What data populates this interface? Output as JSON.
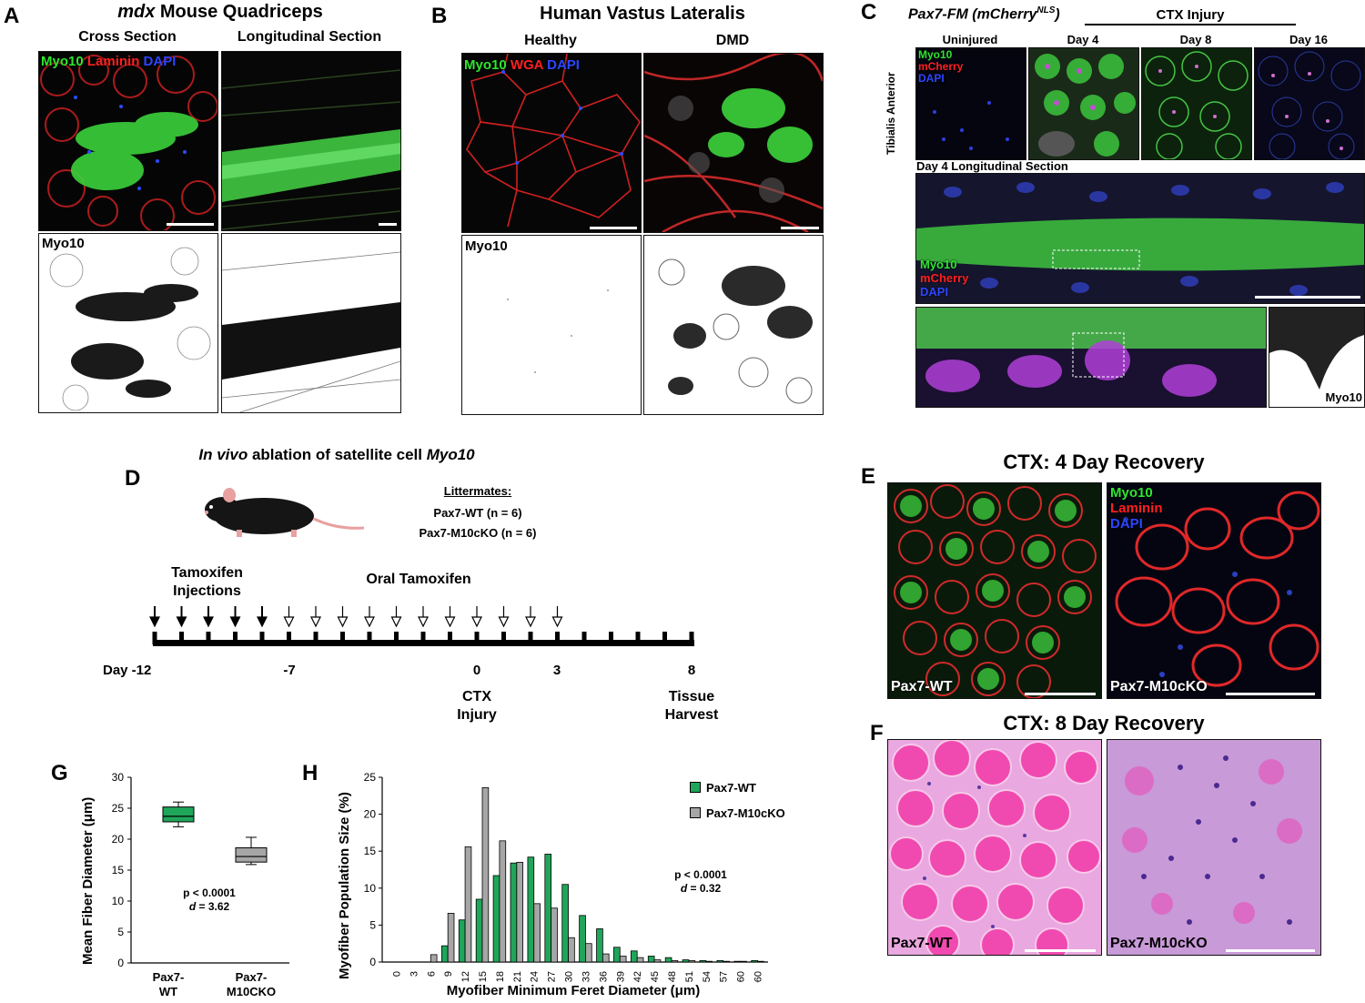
{
  "panelA": {
    "letter": "A",
    "title_italic": "mdx",
    "title_rest": " Mouse Quadriceps",
    "col1": "Cross Section",
    "col2": "Longitudinal Section",
    "stain": [
      "Myo10",
      "Laminin",
      "DAPI"
    ],
    "bw_label": "Myo10"
  },
  "panelB": {
    "letter": "B",
    "title": "Human Vastus Lateralis",
    "col1": "Healthy",
    "col2": "DMD",
    "stain": [
      "Myo10",
      "WGA",
      "DAPI"
    ],
    "bw_label": "Myo10"
  },
  "panelC": {
    "letter": "C",
    "title_italic": "Pax7-FM (mCherry",
    "title_sup": "NLS",
    "title_close": ")",
    "injury": "CTX Injury",
    "row_label": "Tibialis Anterior",
    "cols": [
      "Uninjured",
      "Day 4",
      "Day 8",
      "Day 16"
    ],
    "stain": [
      "Myo10",
      "mCherry",
      "DAPI"
    ],
    "long_title": "Day 4 Longitudinal Section",
    "inset_label": "Myo10"
  },
  "panelD": {
    "letter": "D",
    "title_italic1": "In vivo",
    "title_mid": " ablation of satellite cell ",
    "title_italic2": "Myo10",
    "littermates": "Littermates:",
    "group1": "Pax7-WT (n = 6)",
    "group2": "Pax7-M10cKO (n = 6)",
    "inj_label1": "Tamoxifen",
    "inj_label2": "Injections",
    "oral_label": "Oral Tamoxifen",
    "day_start": "Day -12",
    "day_m7": "-7",
    "day_0": "0",
    "day_3": "3",
    "day_8": "8",
    "ctx1": "CTX",
    "ctx2": "Injury",
    "harvest1": "Tissue",
    "harvest2": "Harvest"
  },
  "panelE": {
    "letter": "E",
    "title": "CTX: 4 Day Recovery",
    "stain": [
      "Myo10",
      "Laminin",
      "DAPI"
    ],
    "left_label": "Pax7-WT",
    "right_label": "Pax7-M10cKO"
  },
  "panelF": {
    "letter": "F",
    "title": "CTX: 8 Day Recovery",
    "left_label": "Pax7-WT",
    "right_label": "Pax7-M10cKO"
  },
  "panelG": {
    "letter": "G",
    "ylabel": "Mean Fiber Diameter (μm)",
    "stat1": "p < 0.0001",
    "stat2_italic": "d",
    "stat2_rest": " = 3.62",
    "x1a": "Pax7-",
    "x1b": "WT",
    "x2a": "Pax7-",
    "x2b": "M10CKO"
  },
  "panelH": {
    "letter": "H",
    "ylabel": "Myofiber Population Size (%)",
    "xlabel": "Myofiber Minimum Feret Diameter (μm)",
    "stat1": "p < 0.0001",
    "stat2_italic": "d",
    "stat2_rest": " = 0.32",
    "legend": [
      "Pax7-WT",
      "Pax7-M10cKO"
    ]
  },
  "chart_data": [
    {
      "type": "box",
      "panel": "G",
      "ylabel": "Mean Fiber Diameter (μm)",
      "ylim": [
        0,
        30
      ],
      "yticks": [
        0,
        5,
        10,
        15,
        20,
        25,
        30
      ],
      "categories": [
        "Pax7-WT",
        "Pax7-M10CKO"
      ],
      "boxes": [
        {
          "name": "Pax7-WT",
          "min": 22.0,
          "q1": 22.8,
          "median": 23.7,
          "q3": 25.2,
          "max": 26.0,
          "color": "#1fa65a"
        },
        {
          "name": "Pax7-M10CKO",
          "min": 15.9,
          "q1": 16.3,
          "median": 17.2,
          "q3": 18.6,
          "max": 20.3,
          "color": "#a6a6a6"
        }
      ]
    },
    {
      "type": "bar",
      "panel": "H",
      "ylabel": "Myofiber Population Size (%)",
      "xlabel": "Myofiber Minimum Feret Diameter (μm)",
      "ylim": [
        0,
        25
      ],
      "yticks": [
        0,
        5,
        10,
        15,
        20,
        25
      ],
      "categories": [
        "0",
        "3",
        "6",
        "9",
        "12",
        "15",
        "18",
        "21",
        "24",
        "27",
        "30",
        "33",
        "36",
        "39",
        "42",
        "45",
        "48",
        "51",
        "54",
        "57",
        "60",
        ">60"
      ],
      "series": [
        {
          "name": "Pax7-WT",
          "color": "#1fa65a",
          "values": [
            0,
            0,
            0,
            2.2,
            5.7,
            8.5,
            11.7,
            13.4,
            14.2,
            14.6,
            10.5,
            6.3,
            4.5,
            2.0,
            1.5,
            0.8,
            0.6,
            0.3,
            0.2,
            0.2,
            0.1,
            0.2
          ]
        },
        {
          "name": "Pax7-M10cKO",
          "color": "#a6a6a6",
          "values": [
            0,
            0,
            1.0,
            6.6,
            15.6,
            23.6,
            16.4,
            13.5,
            7.9,
            7.3,
            3.3,
            2.5,
            1.1,
            0.8,
            0.6,
            0.3,
            0.2,
            0.2,
            0.1,
            0.1,
            0.1,
            0.1
          ]
        }
      ]
    }
  ]
}
